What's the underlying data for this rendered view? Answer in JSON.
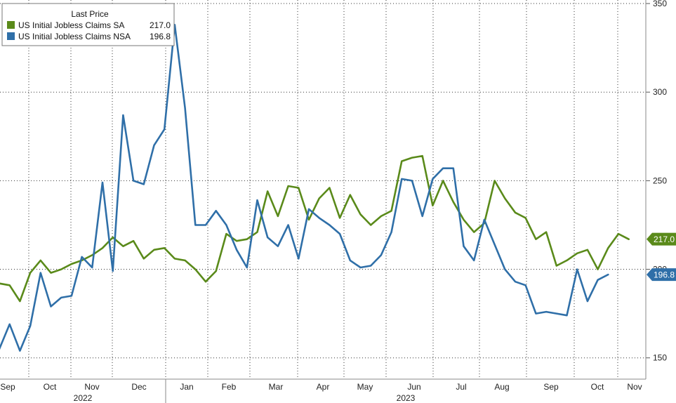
{
  "chart_data": {
    "type": "line",
    "legend": {
      "title": "Last Price",
      "placement": "top-left",
      "entries": [
        {
          "name": "US Initial Jobless Claims SA",
          "value": "217.0",
          "color": "#5a8a1a"
        },
        {
          "name": "US Initial Jobless Claims NSA",
          "value": "196.8",
          "color": "#2f6fa8"
        }
      ]
    },
    "y_axis": {
      "position": "right",
      "ticks": [
        "150",
        "200",
        "250",
        "300",
        "350"
      ],
      "ylim": [
        138,
        352
      ]
    },
    "x_axis": {
      "month_labels": [
        "Sep",
        "Oct",
        "Nov",
        "Dec",
        "Jan",
        "Feb",
        "Mar",
        "Apr",
        "May",
        "Jun",
        "Jul",
        "Aug",
        "Sep",
        "Oct",
        "Nov"
      ],
      "year_labels": [
        "2022",
        "2023"
      ]
    },
    "last_value_tags": [
      "217.0",
      "196.8"
    ],
    "grid": true,
    "series": [
      {
        "name": "US Initial Jobless Claims SA",
        "color": "#5a8a1a",
        "values": [
          192,
          191,
          182,
          198,
          205,
          198,
          200,
          203,
          205,
          208,
          212,
          218,
          213,
          216,
          206,
          211,
          212,
          206,
          205,
          200,
          193,
          199,
          220,
          216,
          217,
          221,
          244,
          230,
          247,
          246,
          228,
          240,
          246,
          229,
          242,
          231,
          225,
          230,
          233,
          261,
          263,
          264,
          236,
          250,
          238,
          228,
          221,
          226,
          250,
          240,
          232,
          229,
          217,
          221,
          202,
          205,
          209,
          211,
          200,
          212,
          220,
          217
        ]
      },
      {
        "name": "US Initial Jobless Claims NSA",
        "color": "#2f6fa8",
        "values": [
          155,
          169,
          154,
          168,
          198,
          179,
          184,
          185,
          207,
          201,
          249,
          199,
          287,
          250,
          248,
          270,
          279,
          338,
          291,
          225,
          225,
          233,
          225,
          211,
          201,
          239,
          218,
          213,
          225,
          206,
          234,
          229,
          225,
          220,
          205,
          201,
          202,
          208,
          221,
          251,
          250,
          230,
          251,
          257,
          257,
          213,
          205,
          228,
          214,
          200,
          193,
          191,
          175,
          176,
          175,
          174,
          200,
          182,
          194,
          197
        ]
      }
    ]
  }
}
